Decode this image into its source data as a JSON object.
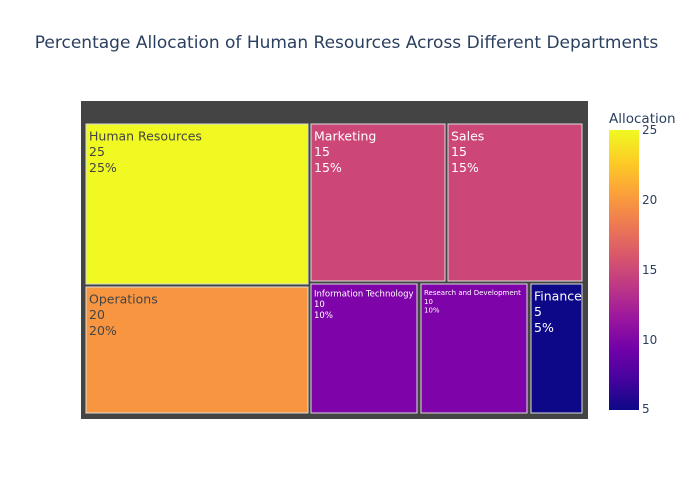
{
  "colors": {
    "background": "#ffffff",
    "plot_frame": "#444444",
    "tile_border": "#dddddd",
    "title": "#2a3f5f"
  },
  "chart_data": {
    "type": "treemap",
    "title": "Percentage Allocation of Human Resources Across Different Departments",
    "colorbar": {
      "title": "Allocation",
      "range": [
        5,
        25
      ],
      "ticks": [
        "25",
        "20",
        "15",
        "10",
        "5"
      ],
      "colorscale": "plasma"
    },
    "departments": [
      {
        "name": "Human Resources",
        "value": 25,
        "percent": "25%",
        "color": "#f0f921",
        "text_color": "#444444"
      },
      {
        "name": "Marketing",
        "value": 15,
        "percent": "15%",
        "color": "#cc4778",
        "text_color": "#ffffff"
      },
      {
        "name": "Sales",
        "value": 15,
        "percent": "15%",
        "color": "#cc4778",
        "text_color": "#ffffff"
      },
      {
        "name": "Operations",
        "value": 20,
        "percent": "20%",
        "color": "#f89540",
        "text_color": "#444444"
      },
      {
        "name": "Information Technology",
        "value": 10,
        "percent": "10%",
        "color": "#7e03a8",
        "text_color": "#ffffff"
      },
      {
        "name": "Research and Development",
        "value": 10,
        "percent": "10%",
        "color": "#7e03a8",
        "text_color": "#ffffff"
      },
      {
        "name": "Finance",
        "value": 5,
        "percent": "5%",
        "color": "#0d0887",
        "text_color": "#ffffff"
      }
    ]
  }
}
